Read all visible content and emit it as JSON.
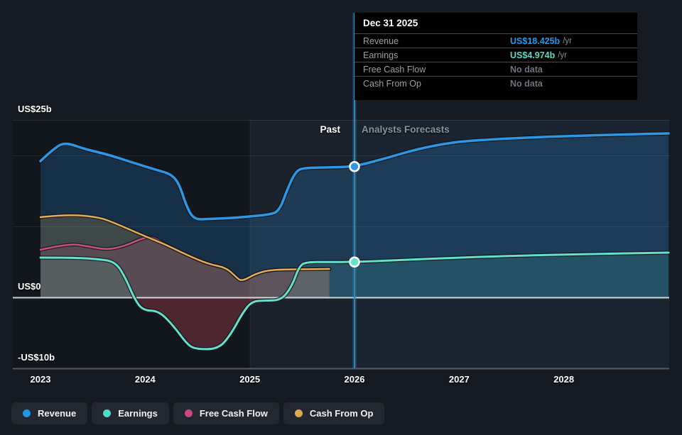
{
  "tooltip": {
    "date": "Dec 31 2025",
    "rows": [
      {
        "label": "Revenue",
        "value": "US$18.425b",
        "suffix": "/yr",
        "value_color": "#1f9ced"
      },
      {
        "label": "Earnings",
        "value": "US$4.974b",
        "suffix": "/yr",
        "value_color": "#53dcc6"
      },
      {
        "label": "Free Cash Flow",
        "value": "No data",
        "suffix": "",
        "value_color": "#6d747c"
      },
      {
        "label": "Cash From Op",
        "value": "No data",
        "suffix": "",
        "value_color": "#6d747c"
      }
    ]
  },
  "region_labels": {
    "past": "Past",
    "forecast": "Analysts Forecasts"
  },
  "y_axis_labels": {
    "top": "US$25b",
    "zero": "US$0",
    "bottom": "-US$10b"
  },
  "legend": [
    {
      "label": "Revenue",
      "color": "#2196e3"
    },
    {
      "label": "Earnings",
      "color": "#4fdcc3"
    },
    {
      "label": "Free Cash Flow",
      "color": "#c9487e"
    },
    {
      "label": "Cash From Op",
      "color": "#e0a84e"
    }
  ],
  "chart_data": {
    "type": "area",
    "unit": "US$ billions per year",
    "x_ticks": [
      "2023",
      "2024",
      "2025",
      "2026",
      "2027",
      "2028"
    ],
    "x_tick_years": [
      2023,
      2024,
      2025,
      2026,
      2027,
      2028
    ],
    "x_range": [
      2023,
      2029
    ],
    "y_range_billions": [
      -11,
      25
    ],
    "y_gridlines_billions": [
      25,
      20,
      10,
      0,
      -10
    ],
    "y_labeled_gridlines": [
      {
        "value": 25,
        "label": "US$25b"
      },
      {
        "value": 0,
        "label": "US$0"
      },
      {
        "value": -10,
        "label": "-US$10b"
      }
    ],
    "divider_year": 2026,
    "highlight_band_years": [
      2025,
      2026
    ],
    "legend_position": "bottom",
    "series": [
      {
        "key": "revenue",
        "name": "Revenue",
        "color": "#2e96e4",
        "fill": "rgba(36,134,208,0.24)",
        "marker": {
          "x": 2026,
          "y": 18.425
        },
        "points": [
          [
            2023.0,
            19.2
          ],
          [
            2023.15,
            21.3
          ],
          [
            2023.25,
            21.8
          ],
          [
            2023.42,
            20.9
          ],
          [
            2023.65,
            20.1
          ],
          [
            2023.9,
            18.9
          ],
          [
            2024.12,
            17.9
          ],
          [
            2024.24,
            17.4
          ],
          [
            2024.32,
            16.2
          ],
          [
            2024.4,
            12.6
          ],
          [
            2024.47,
            10.95
          ],
          [
            2024.62,
            11.05
          ],
          [
            2024.85,
            11.2
          ],
          [
            2025.0,
            11.4
          ],
          [
            2025.18,
            11.65
          ],
          [
            2025.28,
            12.1
          ],
          [
            2025.36,
            15.3
          ],
          [
            2025.44,
            17.8
          ],
          [
            2025.52,
            18.25
          ],
          [
            2025.75,
            18.3
          ],
          [
            2026.0,
            18.425
          ],
          [
            2026.3,
            19.6
          ],
          [
            2026.6,
            20.9
          ],
          [
            2026.95,
            21.9
          ],
          [
            2027.3,
            22.25
          ],
          [
            2027.7,
            22.55
          ],
          [
            2028.1,
            22.75
          ],
          [
            2028.55,
            22.95
          ],
          [
            2029.0,
            23.1
          ]
        ]
      },
      {
        "key": "fcf",
        "name": "Free Cash Flow",
        "color": "#cc4e80",
        "fill": "rgba(201,72,126,0.18)",
        "points": [
          [
            2023.0,
            6.7
          ],
          [
            2023.27,
            7.6
          ],
          [
            2023.45,
            7.2
          ],
          [
            2023.63,
            6.7
          ],
          [
            2023.8,
            7.2
          ],
          [
            2023.95,
            8.2
          ],
          [
            2024.06,
            8.6
          ],
          [
            2024.2,
            7.4
          ],
          [
            2024.38,
            6.1
          ],
          [
            2024.6,
            4.7
          ],
          [
            2024.77,
            4.2
          ],
          [
            2024.86,
            3.0
          ],
          [
            2024.92,
            2.2
          ],
          [
            2025.05,
            3.3
          ],
          [
            2025.2,
            3.9
          ],
          [
            2025.5,
            3.95
          ],
          [
            2025.76,
            4.0
          ]
        ]
      },
      {
        "key": "cfo",
        "name": "Cash From Op",
        "color": "#e5ab55",
        "fill": "rgba(224,168,78,0.20)",
        "points": [
          [
            2023.0,
            11.3
          ],
          [
            2023.26,
            11.7
          ],
          [
            2023.56,
            11.3
          ],
          [
            2023.72,
            10.4
          ],
          [
            2024.0,
            8.6
          ],
          [
            2024.2,
            7.4
          ],
          [
            2024.38,
            6.1
          ],
          [
            2024.6,
            4.7
          ],
          [
            2024.77,
            4.2
          ],
          [
            2024.86,
            3.0
          ],
          [
            2024.92,
            2.2
          ],
          [
            2025.05,
            3.3
          ],
          [
            2025.2,
            3.9
          ],
          [
            2025.5,
            3.95
          ],
          [
            2025.76,
            4.0
          ]
        ]
      },
      {
        "key": "earnings",
        "name": "Earnings",
        "color": "#64e0cb",
        "fill": "rgba(93,224,203,0.13)",
        "fill_negative": "rgba(214,80,94,0.30)",
        "marker": {
          "x": 2026,
          "y": 4.974
        },
        "points": [
          [
            2023.0,
            5.6
          ],
          [
            2023.3,
            5.6
          ],
          [
            2023.55,
            5.4
          ],
          [
            2023.72,
            5.0
          ],
          [
            2023.82,
            2.5
          ],
          [
            2023.9,
            -0.3
          ],
          [
            2023.98,
            -1.85
          ],
          [
            2024.13,
            -1.9
          ],
          [
            2024.27,
            -4.0
          ],
          [
            2024.4,
            -6.6
          ],
          [
            2024.48,
            -7.3
          ],
          [
            2024.7,
            -7.3
          ],
          [
            2024.82,
            -5.2
          ],
          [
            2024.93,
            -2.2
          ],
          [
            2025.02,
            -0.55
          ],
          [
            2025.15,
            -0.45
          ],
          [
            2025.3,
            -0.4
          ],
          [
            2025.4,
            1.5
          ],
          [
            2025.47,
            4.3
          ],
          [
            2025.53,
            4.97
          ],
          [
            2025.75,
            4.98
          ],
          [
            2026.0,
            4.974
          ],
          [
            2026.5,
            5.3
          ],
          [
            2027.0,
            5.6
          ],
          [
            2027.5,
            5.85
          ],
          [
            2028.2,
            6.1
          ],
          [
            2029.0,
            6.3
          ]
        ]
      }
    ]
  }
}
